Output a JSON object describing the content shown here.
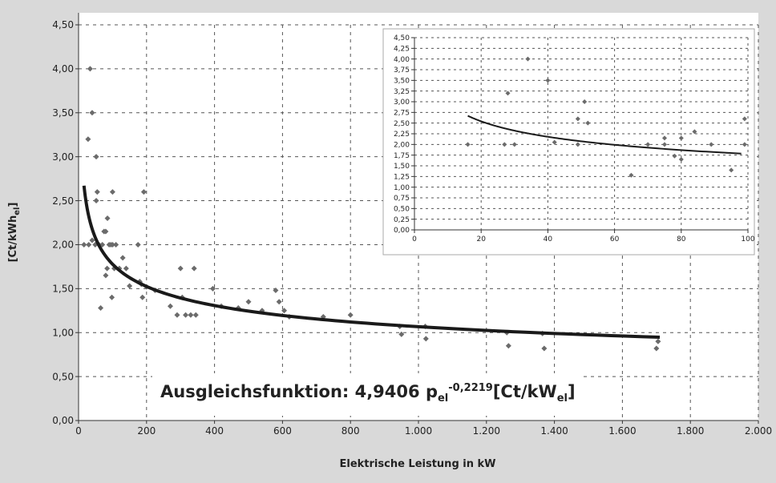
{
  "chart_data": [
    {
      "type": "scatter",
      "title": "",
      "xlabel": "Elektrische Leistung in kW",
      "ylabel_main": "[Ct/kWh",
      "ylabel_sub": "el",
      "ylabel_close": "]",
      "xlim": [
        0,
        2000
      ],
      "ylim": [
        0,
        4.5
      ],
      "x_ticks": [
        0,
        200,
        400,
        600,
        800,
        1000,
        1200,
        1400,
        1600,
        1800,
        2000
      ],
      "x_tick_labels": [
        "0",
        "200",
        "400",
        "600",
        "800",
        "1.000",
        "1.200",
        "1.400",
        "1.600",
        "1.800",
        "2.000"
      ],
      "y_ticks": [
        0,
        0.5,
        1,
        1.5,
        2,
        2.5,
        3,
        3.5,
        4,
        4.5
      ],
      "y_tick_labels": [
        "0,00",
        "0,50",
        "1,00",
        "1,50",
        "2,00",
        "2,50",
        "3,00",
        "3,50",
        "4,00",
        "4,50"
      ],
      "grid": true,
      "series": [
        {
          "points": [
            [
              16,
              2.0
            ],
            [
              28,
              3.2
            ],
            [
              34,
              4.0
            ],
            [
              40,
              3.5
            ],
            [
              40,
              2.05
            ],
            [
              49,
              2.0
            ],
            [
              52,
              2.5
            ],
            [
              52,
              3.0
            ],
            [
              30,
              2.0
            ],
            [
              55,
              2.6
            ],
            [
              60,
              2.0
            ],
            [
              65,
              1.28
            ],
            [
              70,
              2.0
            ],
            [
              75,
              2.15
            ],
            [
              80,
              2.15
            ],
            [
              80,
              1.65
            ],
            [
              84,
              1.73
            ],
            [
              85,
              2.3
            ],
            [
              90,
              2.0
            ],
            [
              95,
              2.0
            ],
            [
              98,
              1.4
            ],
            [
              100,
              2.6
            ],
            [
              100,
              2.0
            ],
            [
              105,
              1.73
            ],
            [
              110,
              2.0
            ],
            [
              120,
              1.73
            ],
            [
              130,
              1.85
            ],
            [
              140,
              1.73
            ],
            [
              150,
              1.53
            ],
            [
              175,
              2.0
            ],
            [
              180,
              1.58
            ],
            [
              185,
              1.55
            ],
            [
              188,
              1.4
            ],
            [
              192,
              2.6
            ],
            [
              200,
              1.52
            ],
            [
              225,
              1.48
            ],
            [
              270,
              1.3
            ],
            [
              290,
              1.2
            ],
            [
              300,
              1.73
            ],
            [
              305,
              1.4
            ],
            [
              315,
              1.2
            ],
            [
              330,
              1.2
            ],
            [
              340,
              1.73
            ],
            [
              345,
              1.2
            ],
            [
              395,
              1.5
            ],
            [
              420,
              1.3
            ],
            [
              470,
              1.28
            ],
            [
              500,
              1.35
            ],
            [
              540,
              1.25
            ],
            [
              580,
              1.48
            ],
            [
              590,
              1.35
            ],
            [
              605,
              1.25
            ],
            [
              620,
              1.18
            ],
            [
              720,
              1.18
            ],
            [
              800,
              1.2
            ],
            [
              945,
              1.07
            ],
            [
              950,
              0.98
            ],
            [
              1020,
              1.07
            ],
            [
              1022,
              0.93
            ],
            [
              1260,
              1.0
            ],
            [
              1265,
              0.85
            ],
            [
              1365,
              0.99
            ],
            [
              1370,
              0.82
            ],
            [
              1700,
              0.82
            ],
            [
              1705,
              0.9
            ]
          ]
        }
      ],
      "fit": {
        "a": 4.9406,
        "b": -0.2219,
        "x_from": 16,
        "x_to": 1710
      },
      "annotation": {
        "prefix": "Ausgleichsfunktion: 4,9406 p",
        "p_sub": "el",
        "exponent": "-0,2219",
        "unit_open": "[Ct/kW",
        "unit_sub": "el",
        "unit_close": "]"
      }
    },
    {
      "type": "scatter",
      "title": "",
      "xlabel": "",
      "ylabel": "",
      "xlim": [
        0,
        100
      ],
      "ylim": [
        0,
        4.5
      ],
      "x_ticks": [
        0,
        20,
        40,
        60,
        80,
        100
      ],
      "x_tick_labels": [
        "0",
        "20",
        "40",
        "60",
        "80",
        "100"
      ],
      "y_ticks": [
        0,
        0.25,
        0.5,
        0.75,
        1,
        1.25,
        1.5,
        1.75,
        2,
        2.25,
        2.5,
        2.75,
        3,
        3.25,
        3.5,
        3.75,
        4,
        4.25,
        4.5
      ],
      "y_tick_labels": [
        "0,00",
        "0,25",
        "0,50",
        "0,75",
        "1,00",
        "1,25",
        "1,50",
        "1,75",
        "2,00",
        "2,25",
        "2,50",
        "2,75",
        "3,00",
        "3,25",
        "3,50",
        "3,75",
        "4,00",
        "4,25",
        "4,50"
      ],
      "grid": true,
      "series": [
        {
          "points": [
            [
              16,
              2.0
            ],
            [
              28,
              3.2
            ],
            [
              27,
              2.0
            ],
            [
              30,
              2.0
            ],
            [
              34,
              4.0
            ],
            [
              40,
              3.5
            ],
            [
              42,
              2.05
            ],
            [
              49,
              2.6
            ],
            [
              49,
              2.0
            ],
            [
              51,
              3.0
            ],
            [
              52,
              2.5
            ],
            [
              65,
              1.28
            ],
            [
              70,
              2.0
            ],
            [
              75,
              2.15
            ],
            [
              75,
              2.0
            ],
            [
              78,
              1.73
            ],
            [
              80,
              2.15
            ],
            [
              80,
              1.65
            ],
            [
              84,
              2.3
            ],
            [
              89,
              2.0
            ],
            [
              95,
              1.4
            ],
            [
              99,
              2.6
            ],
            [
              99,
              2.0
            ]
          ]
        }
      ],
      "fit": {
        "a": 4.9406,
        "b": -0.2219,
        "x_from": 16,
        "x_to": 98
      }
    }
  ]
}
